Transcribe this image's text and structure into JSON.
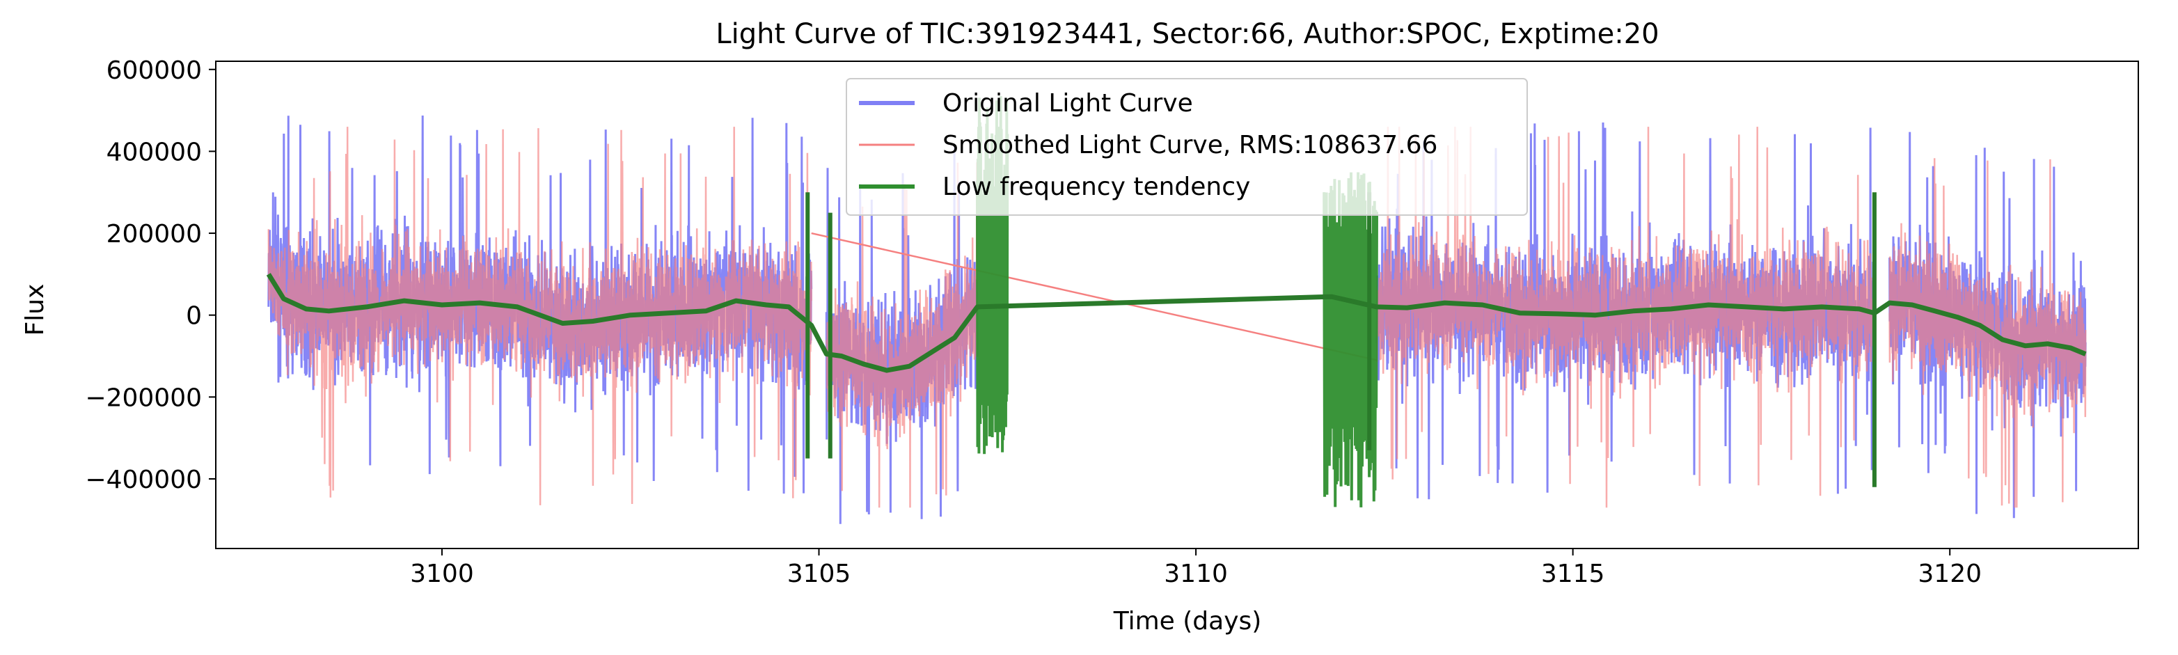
{
  "chart_data": {
    "type": "line",
    "title": "Light Curve of TIC:391923441, Sector:66, Author:SPOC, Exptime:20",
    "xlabel": "Time (days)",
    "ylabel": "Flux",
    "xlim": [
      3097.0,
      3122.5
    ],
    "ylim": [
      -570000,
      620000
    ],
    "x_ticks": [
      3100,
      3105,
      3110,
      3115,
      3120
    ],
    "x_tick_labels": [
      "3100",
      "3105",
      "3110",
      "3115",
      "3120"
    ],
    "y_ticks": [
      -400000,
      -200000,
      0,
      200000,
      400000,
      600000
    ],
    "y_tick_labels": [
      "−400000",
      "−200000",
      "0",
      "200000",
      "400000",
      "600000"
    ],
    "grid": false,
    "legend_position": "top-center",
    "segments": [
      [
        3097.7,
        3104.9
      ],
      [
        3105.1,
        3107.1
      ],
      [
        3112.4,
        3119.0
      ],
      [
        3119.2,
        3121.8
      ]
    ],
    "series": [
      {
        "name": "Original Light Curve",
        "color": "#7f7ff5",
        "style": "dense noisy band",
        "band_typical_low": -250000,
        "band_typical_high": 250000,
        "min": -510000,
        "max": 560000
      },
      {
        "name": "Smoothed Light Curve, RMS:108637.66",
        "color": "#f58080",
        "style": "dense noisy band, thin line",
        "band_typical_low": -250000,
        "band_typical_high": 250000,
        "min": -470000,
        "max": 460000
      },
      {
        "name": "Low frequency tendency",
        "color": "#2f8f2f",
        "style": "smooth trend",
        "x": [
          3097.7,
          3097.9,
          3098.2,
          3098.5,
          3099.0,
          3099.5,
          3100.0,
          3100.5,
          3101.0,
          3101.3,
          3101.6,
          3102.0,
          3102.5,
          3103.0,
          3103.5,
          3103.9,
          3104.3,
          3104.6,
          3104.9,
          3105.1,
          3105.3,
          3105.6,
          3105.9,
          3106.2,
          3106.5,
          3106.8,
          3107.1,
          3111.8,
          3112.4,
          3112.8,
          3113.3,
          3113.8,
          3114.3,
          3114.8,
          3115.3,
          3115.8,
          3116.3,
          3116.8,
          3117.3,
          3117.8,
          3118.3,
          3118.8,
          3119.0,
          3119.2,
          3119.5,
          3119.8,
          3120.1,
          3120.4,
          3120.7,
          3121.0,
          3121.3,
          3121.6,
          3121.8
        ],
        "y": [
          100000,
          40000,
          15000,
          10000,
          20000,
          35000,
          25000,
          30000,
          20000,
          0,
          -20000,
          -15000,
          0,
          5000,
          10000,
          35000,
          25000,
          20000,
          -25000,
          -95000,
          -100000,
          -120000,
          -135000,
          -125000,
          -90000,
          -55000,
          20000,
          45000,
          20000,
          18000,
          30000,
          25000,
          5000,
          3000,
          0,
          10000,
          15000,
          25000,
          20000,
          15000,
          20000,
          15000,
          5000,
          30000,
          25000,
          10000,
          -5000,
          -25000,
          -60000,
          -75000,
          -70000,
          -80000,
          -95000
        ]
      }
    ],
    "noise_bursts": [
      {
        "x_start": 3107.1,
        "x_end": 3107.5,
        "low": -340000,
        "high": 540000,
        "color": "#2f8f2f"
      },
      {
        "x_start": 3111.7,
        "x_end": 3112.4,
        "low": -480000,
        "high": 350000,
        "color": "#2f8f2f"
      }
    ]
  }
}
